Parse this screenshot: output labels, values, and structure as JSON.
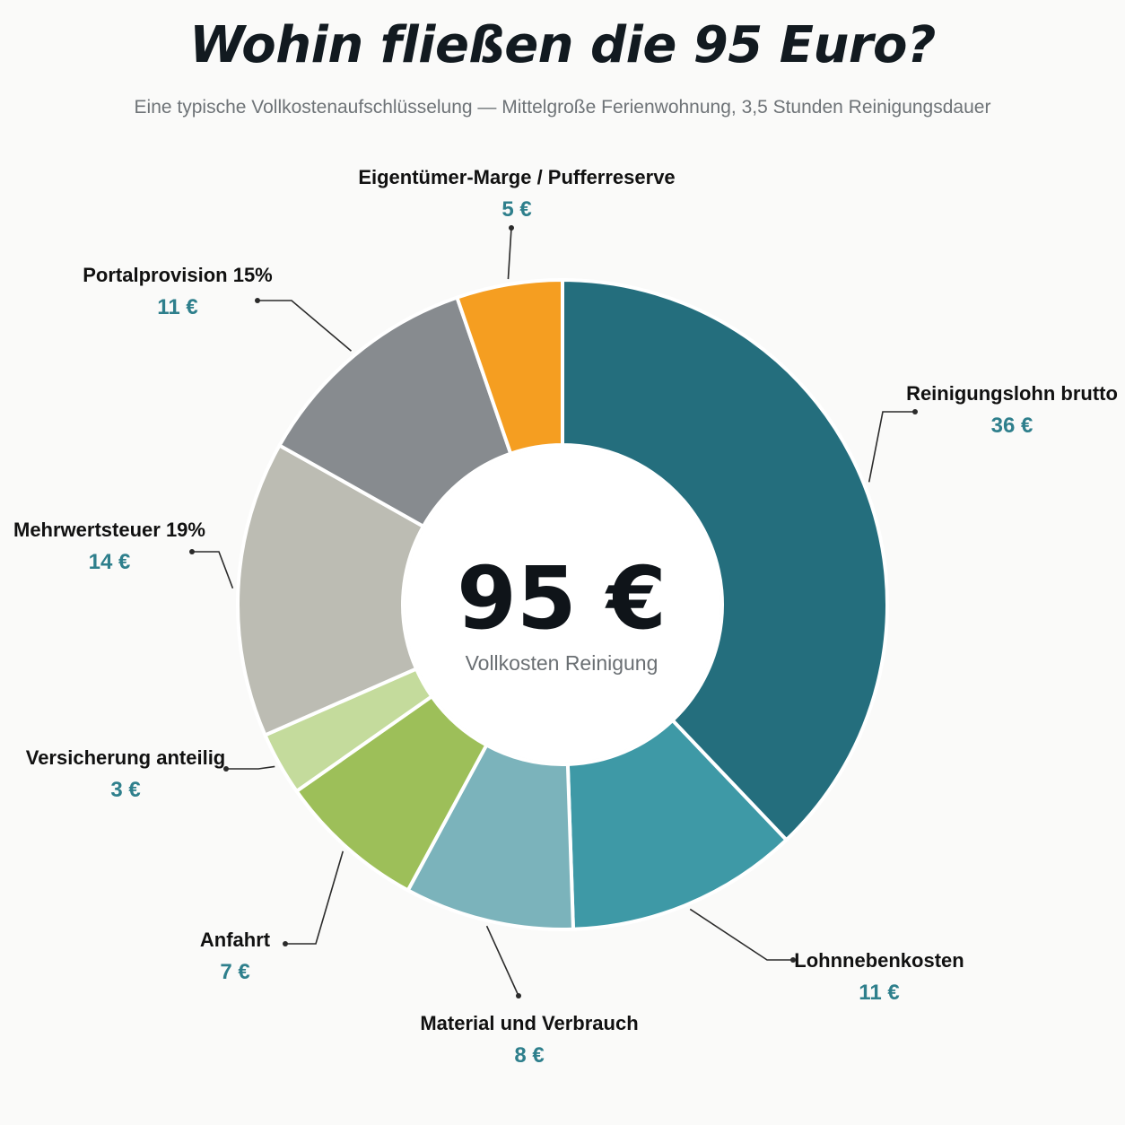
{
  "header": {
    "title": "Wohin fließen die 95 Euro?",
    "subtitle": "Eine typische Vollkostenaufschlüsselung — Mittelgroße Ferienwohnung, 3,5 Stunden Reinigungsdauer"
  },
  "center": {
    "value": "95 €",
    "label": "Vollkosten Reinigung"
  },
  "chart_data": {
    "type": "pie",
    "variant": "donut",
    "title": "Wohin fließen die 95 Euro?",
    "subtitle": "Eine typische Vollkostenaufschlüsselung — Mittelgroße Ferienwohnung, 3,5 Stunden Reinigungsdauer",
    "total": 95,
    "unit": "€",
    "slices": [
      {
        "label": "Reinigungslohn brutto",
        "value": 36,
        "value_label": "36 €",
        "color": "#246e7d"
      },
      {
        "label": "Lohnnebenkosten",
        "value": 11,
        "value_label": "11 €",
        "color": "#3e99a6"
      },
      {
        "label": "Material und Verbrauch",
        "value": 8,
        "value_label": "8 €",
        "color": "#7bb3bb"
      },
      {
        "label": "Anfahrt",
        "value": 7,
        "value_label": "7 €",
        "color": "#9dbf59"
      },
      {
        "label": "Versicherung anteilig",
        "value": 3,
        "value_label": "3 €",
        "color": "#c4db9c"
      },
      {
        "label": "Mehrwertsteuer 19%",
        "value": 14,
        "value_label": "14 €",
        "color": "#bcbcb3"
      },
      {
        "label": "Portalprovision 15%",
        "value": 11,
        "value_label": "11 €",
        "color": "#878b8f"
      },
      {
        "label": "Eigentümer-Marge / Pufferreserve",
        "value": 5,
        "value_label": "5 €",
        "color": "#f59e21"
      }
    ]
  }
}
